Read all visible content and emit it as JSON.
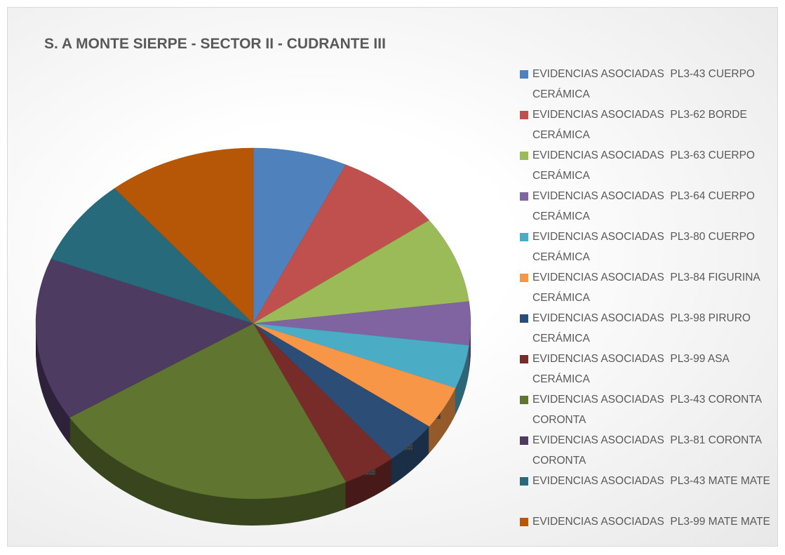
{
  "chart_data": {
    "type": "pie",
    "title": "S. A MONTE SIERPE - SECTOR II - CUDRANTE III",
    "categories": [
      "EVIDENCIAS ASOCIADAS  PL3-43 CUERPO CERÁMICA",
      "EVIDENCIAS ASOCIADAS  PL3-62 BORDE CERÁMICA",
      "EVIDENCIAS ASOCIADAS  PL3-63 CUERPO CERÁMICA",
      "EVIDENCIAS ASOCIADAS  PL3-64 CUERPO CERÁMICA",
      "EVIDENCIAS ASOCIADAS  PL3-80 CUERPO CERÁMICA",
      "EVIDENCIAS ASOCIADAS  PL3-84 FIGURINA CERÁMICA",
      "EVIDENCIAS ASOCIADAS  PL3-98 PIRURO CERÁMICA",
      "EVIDENCIAS ASOCIADAS  PL3-99 ASA CERÁMICA",
      "EVIDENCIAS ASOCIADAS  PL3-43 CORONTA CORONTA",
      "EVIDENCIAS ASOCIADAS  PL3-81 CORONTA CORONTA",
      "EVIDENCIAS ASOCIADAS  PL3-43 MATE MATE",
      "EVIDENCIAS ASOCIADAS  PL3-99 MATE MATE"
    ],
    "values": [
      7,
      8,
      8,
      4,
      4,
      4,
      4,
      4,
      23,
      15,
      8,
      11
    ],
    "value_labels": [
      "7%",
      "8%",
      "8%",
      "4%",
      "4%",
      "4%",
      "4%",
      "4%",
      "23%",
      "15%",
      "8%",
      "11%"
    ],
    "colors": [
      "#4f81bd",
      "#c0504d",
      "#9bbb59",
      "#8064a2",
      "#4bacc6",
      "#f79646",
      "#2c4d75",
      "#772c2a",
      "#5f7530",
      "#4d3b62",
      "#276a7c",
      "#b65708"
    ],
    "legend": "right"
  }
}
